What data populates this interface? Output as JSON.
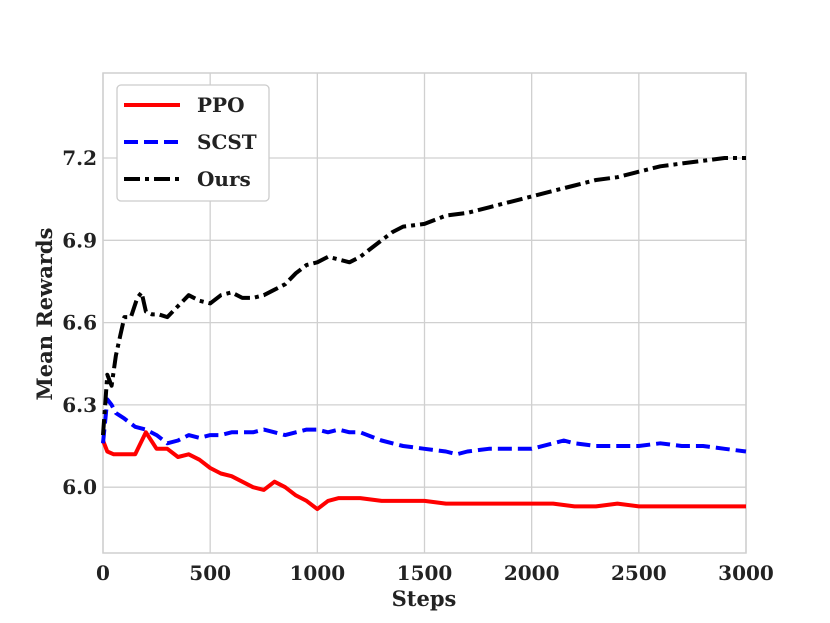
{
  "chart_data": {
    "type": "line",
    "title": "",
    "xlabel": "Steps",
    "ylabel": "Mean Rewards",
    "xlim": [
      0,
      3000
    ],
    "ylim": [
      5.76,
      7.51
    ],
    "xticks": [
      0,
      500,
      1000,
      1500,
      2000,
      2500,
      3000
    ],
    "yticks": [
      6.0,
      6.3,
      6.6,
      6.9,
      7.2
    ],
    "ytick_labels": [
      "6.0",
      "6.3",
      "6.6",
      "6.9",
      "7.2"
    ],
    "grid": true,
    "legend_position": "top-left",
    "series": [
      {
        "name": "PPO",
        "color": "#ff0000",
        "style": "solid",
        "x": [
          0,
          20,
          50,
          100,
          150,
          200,
          250,
          300,
          350,
          400,
          450,
          500,
          550,
          600,
          650,
          700,
          750,
          800,
          850,
          900,
          950,
          1000,
          1050,
          1100,
          1200,
          1300,
          1400,
          1500,
          1600,
          1700,
          1800,
          1900,
          2000,
          2100,
          2200,
          2300,
          2400,
          2500,
          2600,
          2700,
          2800,
          2900,
          3000
        ],
        "y": [
          6.17,
          6.13,
          6.12,
          6.12,
          6.12,
          6.2,
          6.14,
          6.14,
          6.11,
          6.12,
          6.1,
          6.07,
          6.05,
          6.04,
          6.02,
          6.0,
          5.99,
          6.02,
          6.0,
          5.97,
          5.95,
          5.92,
          5.95,
          5.96,
          5.96,
          5.95,
          5.95,
          5.95,
          5.94,
          5.94,
          5.94,
          5.94,
          5.94,
          5.94,
          5.93,
          5.93,
          5.94,
          5.93,
          5.93,
          5.93,
          5.93,
          5.93,
          5.93
        ]
      },
      {
        "name": "SCST",
        "color": "#0000ff",
        "style": "dashed",
        "x": [
          0,
          20,
          40,
          60,
          100,
          150,
          200,
          250,
          300,
          350,
          400,
          450,
          500,
          550,
          600,
          650,
          700,
          750,
          800,
          850,
          900,
          950,
          1000,
          1050,
          1100,
          1150,
          1200,
          1300,
          1400,
          1500,
          1600,
          1650,
          1700,
          1800,
          1900,
          2000,
          2100,
          2150,
          2200,
          2300,
          2400,
          2500,
          2600,
          2700,
          2800,
          2900,
          3000
        ],
        "y": [
          6.16,
          6.32,
          6.3,
          6.27,
          6.25,
          6.22,
          6.21,
          6.19,
          6.16,
          6.17,
          6.19,
          6.18,
          6.19,
          6.19,
          6.2,
          6.2,
          6.2,
          6.21,
          6.2,
          6.19,
          6.2,
          6.21,
          6.21,
          6.2,
          6.21,
          6.2,
          6.2,
          6.17,
          6.15,
          6.14,
          6.13,
          6.12,
          6.13,
          6.14,
          6.14,
          6.14,
          6.16,
          6.17,
          6.16,
          6.15,
          6.15,
          6.15,
          6.16,
          6.15,
          6.15,
          6.14,
          6.13
        ]
      },
      {
        "name": "Ours",
        "color": "#000000",
        "style": "dashdot",
        "x": [
          0,
          20,
          40,
          60,
          80,
          100,
          130,
          160,
          180,
          200,
          230,
          260,
          300,
          350,
          400,
          450,
          500,
          550,
          600,
          650,
          700,
          750,
          800,
          850,
          900,
          950,
          1000,
          1050,
          1100,
          1150,
          1200,
          1250,
          1300,
          1350,
          1400,
          1500,
          1600,
          1700,
          1800,
          1900,
          2000,
          2100,
          2200,
          2300,
          2400,
          2500,
          2600,
          2700,
          2800,
          2900,
          3000
        ],
        "y": [
          6.19,
          6.41,
          6.37,
          6.48,
          6.55,
          6.62,
          6.62,
          6.69,
          6.71,
          6.64,
          6.63,
          6.63,
          6.62,
          6.66,
          6.7,
          6.68,
          6.67,
          6.7,
          6.71,
          6.69,
          6.69,
          6.7,
          6.72,
          6.74,
          6.78,
          6.81,
          6.82,
          6.84,
          6.83,
          6.82,
          6.84,
          6.87,
          6.9,
          6.93,
          6.95,
          6.96,
          6.99,
          7.0,
          7.02,
          7.04,
          7.06,
          7.08,
          7.1,
          7.12,
          7.13,
          7.15,
          7.17,
          7.18,
          7.19,
          7.2,
          7.2
        ]
      }
    ]
  }
}
